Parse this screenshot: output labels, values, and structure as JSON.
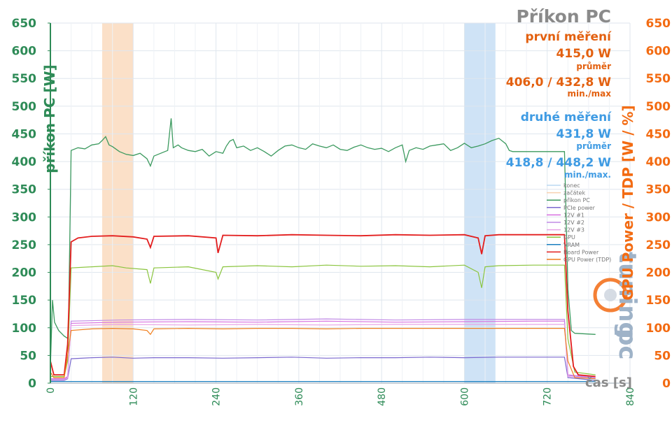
{
  "chart_data": {
    "type": "line",
    "title": "Příkon PC",
    "xlabel": "čas [s]",
    "ylabel_left": "příkon PC [W]",
    "ylabel_right": "GPU Power / TDP [W / %]",
    "xlim": [
      0,
      840
    ],
    "ylim": [
      0,
      650
    ],
    "y2lim": [
      0,
      650
    ],
    "x_ticks": [
      "0",
      "120",
      "240",
      "360",
      "480",
      "600",
      "720",
      "840"
    ],
    "y_ticks": [
      "0",
      "50",
      "100",
      "150",
      "200",
      "250",
      "300",
      "350",
      "400",
      "450",
      "500",
      "550",
      "600",
      "650"
    ],
    "grid": true,
    "legend_position": "right-middle",
    "shaded_regions": [
      {
        "name": "konec",
        "x": [
          600,
          645
        ]
      },
      {
        "name": "začátek",
        "x": [
          75,
          120
        ]
      }
    ],
    "annotations": {
      "first": {
        "label": "první měření",
        "avg": "415,0 W",
        "avg_label": "průměr",
        "range": "406,0 / 432,8 W",
        "range_label": "min./max"
      },
      "second": {
        "label": "druhé měření",
        "avg": "431,8 W",
        "avg_label": "průměr",
        "range": "418,8 / 448,2 W",
        "range_label": "min./max."
      }
    },
    "series": [
      {
        "name": "konec",
        "color": "#bcd9f2",
        "points": []
      },
      {
        "name": "začátek",
        "color": "#f8d2b0",
        "points": []
      },
      {
        "name": "příkon PC",
        "color": "#3c9a5f",
        "axis": "left",
        "points": [
          [
            0,
            30
          ],
          [
            3,
            150
          ],
          [
            6,
            110
          ],
          [
            12,
            95
          ],
          [
            20,
            85
          ],
          [
            26,
            80
          ],
          [
            30,
            420
          ],
          [
            40,
            425
          ],
          [
            50,
            423
          ],
          [
            60,
            430
          ],
          [
            70,
            432
          ],
          [
            75,
            438
          ],
          [
            80,
            445
          ],
          [
            85,
            430
          ],
          [
            90,
            427
          ],
          [
            100,
            418
          ],
          [
            110,
            413
          ],
          [
            120,
            411
          ],
          [
            130,
            415
          ],
          [
            140,
            405
          ],
          [
            145,
            392
          ],
          [
            150,
            410
          ],
          [
            160,
            415
          ],
          [
            170,
            420
          ],
          [
            175,
            478
          ],
          [
            178,
            425
          ],
          [
            185,
            430
          ],
          [
            190,
            425
          ],
          [
            200,
            420
          ],
          [
            210,
            418
          ],
          [
            220,
            422
          ],
          [
            230,
            410
          ],
          [
            240,
            418
          ],
          [
            250,
            415
          ],
          [
            255,
            428
          ],
          [
            260,
            437
          ],
          [
            265,
            440
          ],
          [
            270,
            425
          ],
          [
            280,
            428
          ],
          [
            290,
            420
          ],
          [
            300,
            425
          ],
          [
            310,
            418
          ],
          [
            320,
            410
          ],
          [
            330,
            420
          ],
          [
            340,
            428
          ],
          [
            350,
            430
          ],
          [
            360,
            425
          ],
          [
            370,
            422
          ],
          [
            380,
            432
          ],
          [
            390,
            428
          ],
          [
            400,
            425
          ],
          [
            410,
            430
          ],
          [
            420,
            422
          ],
          [
            430,
            420
          ],
          [
            440,
            426
          ],
          [
            450,
            430
          ],
          [
            460,
            425
          ],
          [
            470,
            422
          ],
          [
            480,
            424
          ],
          [
            490,
            418
          ],
          [
            500,
            425
          ],
          [
            510,
            430
          ],
          [
            515,
            400
          ],
          [
            520,
            420
          ],
          [
            530,
            425
          ],
          [
            540,
            422
          ],
          [
            550,
            428
          ],
          [
            560,
            430
          ],
          [
            570,
            432
          ],
          [
            580,
            420
          ],
          [
            590,
            425
          ],
          [
            600,
            433
          ],
          [
            610,
            425
          ],
          [
            620,
            428
          ],
          [
            630,
            432
          ],
          [
            640,
            438
          ],
          [
            650,
            442
          ],
          [
            660,
            432
          ],
          [
            665,
            420
          ],
          [
            670,
            418
          ],
          [
            700,
            418
          ],
          [
            720,
            418
          ],
          [
            745,
            418
          ],
          [
            750,
            170
          ],
          [
            755,
            95
          ],
          [
            760,
            90
          ],
          [
            790,
            88
          ]
        ]
      },
      {
        "name": "PCIe power",
        "color": "#7b68cf",
        "axis": "right",
        "points": [
          [
            0,
            5
          ],
          [
            20,
            5
          ],
          [
            25,
            8
          ],
          [
            30,
            44
          ],
          [
            60,
            46
          ],
          [
            90,
            47
          ],
          [
            120,
            45
          ],
          [
            150,
            46
          ],
          [
            200,
            46
          ],
          [
            250,
            45
          ],
          [
            300,
            46
          ],
          [
            350,
            47
          ],
          [
            400,
            45
          ],
          [
            450,
            46
          ],
          [
            500,
            46
          ],
          [
            550,
            47
          ],
          [
            600,
            46
          ],
          [
            650,
            47
          ],
          [
            700,
            47
          ],
          [
            745,
            47
          ],
          [
            750,
            10
          ],
          [
            790,
            5
          ]
        ]
      },
      {
        "name": "12V #1",
        "color": "#d86fe0",
        "axis": "right",
        "points": [
          [
            0,
            8
          ],
          [
            20,
            8
          ],
          [
            25,
            12
          ],
          [
            30,
            108
          ],
          [
            100,
            110
          ],
          [
            200,
            111
          ],
          [
            300,
            110
          ],
          [
            400,
            112
          ],
          [
            500,
            110
          ],
          [
            600,
            111
          ],
          [
            700,
            112
          ],
          [
            745,
            112
          ],
          [
            750,
            15
          ],
          [
            790,
            10
          ]
        ]
      },
      {
        "name": "12V #2",
        "color": "#c18be6",
        "axis": "right",
        "points": [
          [
            0,
            7
          ],
          [
            20,
            7
          ],
          [
            25,
            10
          ],
          [
            30,
            112
          ],
          [
            100,
            114
          ],
          [
            200,
            115
          ],
          [
            300,
            114
          ],
          [
            400,
            116
          ],
          [
            500,
            114
          ],
          [
            600,
            115
          ],
          [
            700,
            115
          ],
          [
            745,
            115
          ],
          [
            750,
            14
          ],
          [
            790,
            9
          ]
        ]
      },
      {
        "name": "12V #3",
        "color": "#e8a3e6",
        "axis": "right",
        "points": [
          [
            0,
            6
          ],
          [
            20,
            6
          ],
          [
            25,
            9
          ],
          [
            30,
            104
          ],
          [
            100,
            106
          ],
          [
            200,
            105
          ],
          [
            300,
            106
          ],
          [
            400,
            105
          ],
          [
            500,
            106
          ],
          [
            600,
            106
          ],
          [
            700,
            106
          ],
          [
            745,
            106
          ],
          [
            750,
            12
          ],
          [
            790,
            8
          ]
        ]
      },
      {
        "name": "GPU",
        "color": "#8bc53f",
        "axis": "right",
        "points": [
          [
            0,
            12
          ],
          [
            20,
            12
          ],
          [
            25,
            40
          ],
          [
            30,
            208
          ],
          [
            60,
            210
          ],
          [
            90,
            212
          ],
          [
            110,
            208
          ],
          [
            140,
            205
          ],
          [
            145,
            180
          ],
          [
            150,
            208
          ],
          [
            200,
            210
          ],
          [
            240,
            200
          ],
          [
            243,
            188
          ],
          [
            250,
            210
          ],
          [
            300,
            212
          ],
          [
            350,
            210
          ],
          [
            400,
            213
          ],
          [
            450,
            211
          ],
          [
            500,
            212
          ],
          [
            550,
            210
          ],
          [
            600,
            213
          ],
          [
            620,
            200
          ],
          [
            625,
            172
          ],
          [
            630,
            210
          ],
          [
            650,
            212
          ],
          [
            700,
            213
          ],
          [
            745,
            213
          ],
          [
            750,
            80
          ],
          [
            760,
            20
          ],
          [
            790,
            15
          ]
        ]
      },
      {
        "name": "VRAM",
        "color": "#1a7fbf",
        "axis": "right",
        "points": [
          [
            0,
            3
          ],
          [
            30,
            3
          ],
          [
            745,
            3
          ],
          [
            790,
            3
          ]
        ]
      },
      {
        "name": "Board Power",
        "color": "#e31e1e",
        "axis": "right",
        "points": [
          [
            0,
            40
          ],
          [
            5,
            15
          ],
          [
            20,
            15
          ],
          [
            25,
            70
          ],
          [
            30,
            255
          ],
          [
            40,
            262
          ],
          [
            60,
            265
          ],
          [
            90,
            266
          ],
          [
            120,
            264
          ],
          [
            140,
            260
          ],
          [
            145,
            245
          ],
          [
            150,
            265
          ],
          [
            200,
            266
          ],
          [
            240,
            262
          ],
          [
            243,
            235
          ],
          [
            250,
            267
          ],
          [
            300,
            266
          ],
          [
            350,
            268
          ],
          [
            400,
            267
          ],
          [
            450,
            266
          ],
          [
            500,
            268
          ],
          [
            550,
            267
          ],
          [
            600,
            268
          ],
          [
            620,
            262
          ],
          [
            625,
            233
          ],
          [
            630,
            266
          ],
          [
            650,
            268
          ],
          [
            700,
            268
          ],
          [
            745,
            268
          ],
          [
            750,
            130
          ],
          [
            758,
            30
          ],
          [
            765,
            15
          ],
          [
            790,
            12
          ]
        ]
      },
      {
        "name": "GPU Power (TDP)",
        "color": "#f07f1e",
        "axis": "right",
        "points": [
          [
            0,
            20
          ],
          [
            5,
            10
          ],
          [
            20,
            10
          ],
          [
            25,
            50
          ],
          [
            30,
            95
          ],
          [
            60,
            98
          ],
          [
            90,
            99
          ],
          [
            120,
            98
          ],
          [
            140,
            95
          ],
          [
            145,
            88
          ],
          [
            150,
            98
          ],
          [
            200,
            99
          ],
          [
            250,
            98
          ],
          [
            300,
            99
          ],
          [
            350,
            99
          ],
          [
            400,
            98
          ],
          [
            450,
            99
          ],
          [
            500,
            99
          ],
          [
            550,
            99
          ],
          [
            600,
            99
          ],
          [
            650,
            99
          ],
          [
            700,
            99
          ],
          [
            745,
            99
          ],
          [
            750,
            40
          ],
          [
            760,
            10
          ],
          [
            790,
            8
          ]
        ]
      }
    ]
  }
}
